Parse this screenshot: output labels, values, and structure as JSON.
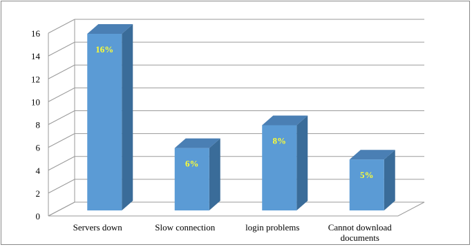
{
  "chart_data": {
    "type": "bar",
    "categories": [
      "Servers down",
      "Slow connection",
      "login problems",
      "Cannot download documents"
    ],
    "category_lines": [
      [
        "Servers down"
      ],
      [
        "Slow connection"
      ],
      [
        "login problems"
      ],
      [
        "Cannot download",
        "documents"
      ]
    ],
    "values": [
      16,
      6,
      8,
      5
    ],
    "data_labels": [
      "16%",
      "6%",
      "8%",
      "5%"
    ],
    "ylim": [
      0,
      16
    ],
    "yticks": [
      0,
      2,
      4,
      6,
      8,
      10,
      12,
      14,
      16
    ],
    "ytick_labels": [
      "0",
      "2",
      "4",
      "6",
      "8",
      "10",
      "12",
      "14",
      "16"
    ],
    "grid": true,
    "style": "3d-column",
    "colors": {
      "bar_front": "#5b9bd5",
      "bar_side": "#3a6c99",
      "bar_top": "#4a7fb4",
      "data_label": "#ffff33",
      "gridline": "#9a9a9a"
    }
  }
}
